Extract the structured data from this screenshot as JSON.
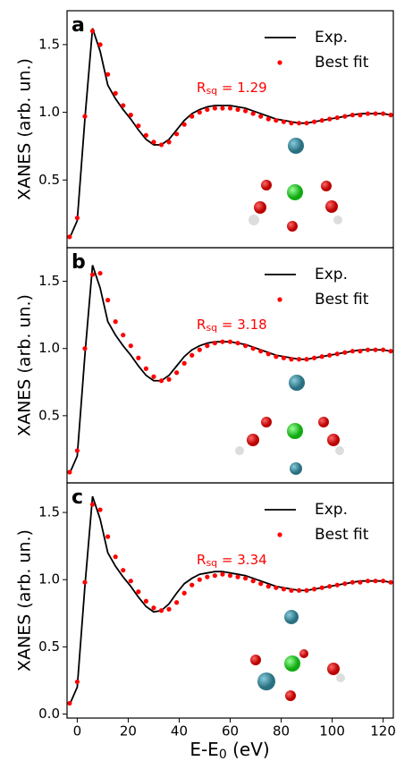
{
  "chart_data": [
    {
      "type": "line",
      "panel_label": "a",
      "ylabel": "XANES (arb. un.)",
      "legend": "upper right",
      "annotation": [
        "R",
        "sq",
        " = 1.29"
      ],
      "annotation_color": "#ff0000",
      "x": [
        -3,
        0,
        3,
        6,
        9,
        12,
        15,
        18,
        21,
        24,
        27,
        30,
        33,
        36,
        39,
        42,
        45,
        48,
        51,
        54,
        57,
        60,
        63,
        66,
        69,
        72,
        75,
        78,
        81,
        84,
        87,
        90,
        93,
        96,
        99,
        102,
        105,
        108,
        111,
        114,
        117,
        120,
        123
      ],
      "series": [
        {
          "name": "Exp.",
          "color": "#000000",
          "style": "line",
          "values": [
            0.07,
            0.2,
            0.95,
            1.62,
            1.45,
            1.2,
            1.1,
            1.02,
            0.95,
            0.87,
            0.8,
            0.76,
            0.76,
            0.8,
            0.87,
            0.94,
            0.99,
            1.02,
            1.04,
            1.05,
            1.05,
            1.05,
            1.04,
            1.03,
            1.01,
            0.99,
            0.97,
            0.95,
            0.94,
            0.93,
            0.92,
            0.92,
            0.93,
            0.94,
            0.95,
            0.96,
            0.97,
            0.98,
            0.99,
            0.99,
            0.99,
            0.99,
            0.98
          ]
        },
        {
          "name": "Best fit",
          "color": "#ff0000",
          "style": "points",
          "values": [
            0.08,
            0.22,
            0.97,
            1.6,
            1.5,
            1.28,
            1.14,
            1.05,
            0.98,
            0.9,
            0.83,
            0.78,
            0.76,
            0.78,
            0.84,
            0.91,
            0.97,
            1.0,
            1.02,
            1.03,
            1.03,
            1.03,
            1.02,
            1.01,
            0.99,
            0.97,
            0.95,
            0.94,
            0.93,
            0.92,
            0.92,
            0.92,
            0.93,
            0.94,
            0.95,
            0.96,
            0.97,
            0.98,
            0.98,
            0.99,
            0.99,
            0.99,
            0.98
          ]
        }
      ],
      "xlim": [
        -4,
        124
      ],
      "ylim": [
        0,
        1.75
      ],
      "yticks": [
        {
          "value": 0.5,
          "label": "0.5"
        },
        {
          "value": 1.0,
          "label": "1.0"
        },
        {
          "value": 1.5,
          "label": "1.5"
        }
      ]
    },
    {
      "type": "line",
      "panel_label": "b",
      "ylabel": "XANES (arb. un.)",
      "legend": "upper right",
      "annotation": [
        "R",
        "sq",
        " = 3.18"
      ],
      "annotation_color": "#ff0000",
      "x": [
        -3,
        0,
        3,
        6,
        9,
        12,
        15,
        18,
        21,
        24,
        27,
        30,
        33,
        36,
        39,
        42,
        45,
        48,
        51,
        54,
        57,
        60,
        63,
        66,
        69,
        72,
        75,
        78,
        81,
        84,
        87,
        90,
        93,
        96,
        99,
        102,
        105,
        108,
        111,
        114,
        117,
        120,
        123
      ],
      "series": [
        {
          "name": "Exp.",
          "color": "#000000",
          "style": "line",
          "values": [
            0.07,
            0.2,
            0.95,
            1.62,
            1.45,
            1.2,
            1.1,
            1.02,
            0.95,
            0.87,
            0.8,
            0.76,
            0.76,
            0.8,
            0.87,
            0.94,
            0.99,
            1.02,
            1.04,
            1.05,
            1.05,
            1.05,
            1.04,
            1.03,
            1.01,
            0.99,
            0.97,
            0.95,
            0.94,
            0.93,
            0.92,
            0.92,
            0.93,
            0.94,
            0.95,
            0.96,
            0.97,
            0.98,
            0.99,
            0.99,
            0.99,
            0.99,
            0.98
          ]
        },
        {
          "name": "Best fit",
          "color": "#ff0000",
          "style": "points",
          "values": [
            0.08,
            0.24,
            1.0,
            1.55,
            1.56,
            1.36,
            1.2,
            1.1,
            1.02,
            0.93,
            0.85,
            0.79,
            0.76,
            0.77,
            0.82,
            0.89,
            0.95,
            0.99,
            1.02,
            1.04,
            1.05,
            1.05,
            1.04,
            1.02,
            1.0,
            0.98,
            0.96,
            0.94,
            0.93,
            0.92,
            0.92,
            0.92,
            0.93,
            0.94,
            0.95,
            0.96,
            0.97,
            0.98,
            0.98,
            0.99,
            0.99,
            0.99,
            0.98
          ]
        }
      ],
      "xlim": [
        -4,
        124
      ],
      "ylim": [
        0,
        1.75
      ],
      "yticks": [
        {
          "value": 0.5,
          "label": "0.5"
        },
        {
          "value": 1.0,
          "label": "1.0"
        },
        {
          "value": 1.5,
          "label": "1.5"
        }
      ]
    },
    {
      "type": "line",
      "panel_label": "c",
      "ylabel": "XANES (arb. un.)",
      "legend": "upper right",
      "annotation": [
        "R",
        "sq",
        " = 3.34"
      ],
      "annotation_color": "#ff0000",
      "xlabel": [
        "E-E",
        "0",
        " (eV)"
      ],
      "x": [
        -3,
        0,
        3,
        6,
        9,
        12,
        15,
        18,
        21,
        24,
        27,
        30,
        33,
        36,
        39,
        42,
        45,
        48,
        51,
        54,
        57,
        60,
        63,
        66,
        69,
        72,
        75,
        78,
        81,
        84,
        87,
        90,
        93,
        96,
        99,
        102,
        105,
        108,
        111,
        114,
        117,
        120,
        123
      ],
      "series": [
        {
          "name": "Exp.",
          "color": "#000000",
          "style": "line",
          "values": [
            0.07,
            0.2,
            0.95,
            1.62,
            1.45,
            1.2,
            1.1,
            1.02,
            0.95,
            0.87,
            0.8,
            0.76,
            0.77,
            0.82,
            0.9,
            0.97,
            1.01,
            1.04,
            1.05,
            1.06,
            1.06,
            1.05,
            1.04,
            1.03,
            1.01,
            0.99,
            0.97,
            0.95,
            0.94,
            0.93,
            0.92,
            0.92,
            0.93,
            0.94,
            0.95,
            0.96,
            0.97,
            0.98,
            0.99,
            0.99,
            0.99,
            0.99,
            0.98
          ]
        },
        {
          "name": "Best fit",
          "color": "#ff0000",
          "style": "points",
          "values": [
            0.08,
            0.24,
            0.98,
            1.56,
            1.52,
            1.32,
            1.17,
            1.07,
            0.99,
            0.91,
            0.84,
            0.79,
            0.77,
            0.78,
            0.83,
            0.9,
            0.96,
            1.0,
            1.02,
            1.03,
            1.04,
            1.03,
            1.02,
            1.01,
            0.99,
            0.97,
            0.95,
            0.94,
            0.93,
            0.92,
            0.92,
            0.92,
            0.93,
            0.94,
            0.95,
            0.96,
            0.97,
            0.98,
            0.98,
            0.99,
            0.99,
            0.99,
            0.98
          ]
        }
      ],
      "xlim": [
        -4,
        124
      ],
      "ylim": [
        -0.03,
        1.72
      ],
      "yticks": [
        {
          "value": 0.0,
          "label": "0.0"
        },
        {
          "value": 0.5,
          "label": "0.5"
        },
        {
          "value": 1.0,
          "label": "1.0"
        },
        {
          "value": 1.5,
          "label": "1.5"
        }
      ],
      "xticks": [
        0,
        20,
        40,
        60,
        80,
        100,
        120
      ]
    }
  ]
}
